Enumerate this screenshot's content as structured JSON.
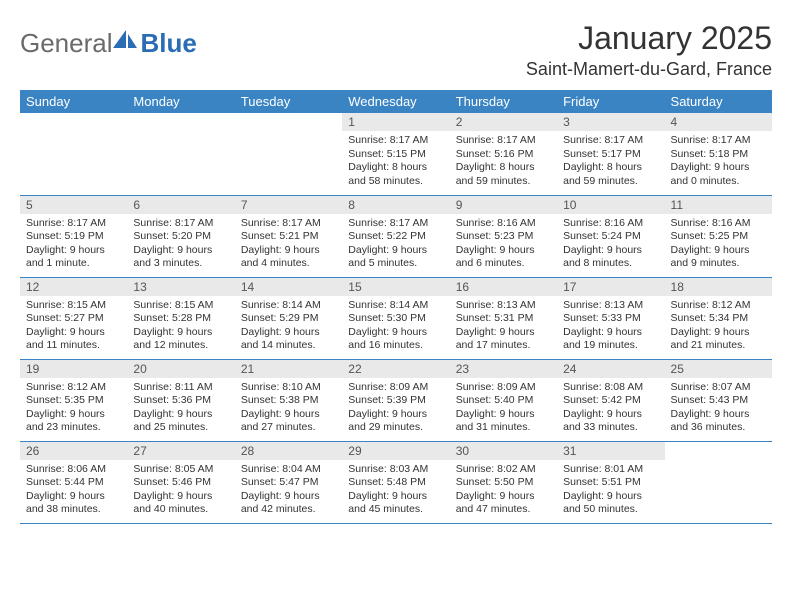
{
  "logo": {
    "text_general": "General",
    "text_blue": "Blue"
  },
  "title": "January 2025",
  "location": "Saint-Mamert-du-Gard, France",
  "colors": {
    "header_bg": "#3b84c4",
    "header_fg": "#ffffff",
    "daynum_bg": "#e9e9e9",
    "daynum_fg": "#555555",
    "border": "#3b84c4",
    "logo_gray": "#6a6a6a",
    "logo_blue": "#2a6db5"
  },
  "day_headers": [
    "Sunday",
    "Monday",
    "Tuesday",
    "Wednesday",
    "Thursday",
    "Friday",
    "Saturday"
  ],
  "weeks": [
    [
      null,
      null,
      null,
      {
        "n": "1",
        "sr": "Sunrise: 8:17 AM",
        "ss": "Sunset: 5:15 PM",
        "dl": "Daylight: 8 hours and 58 minutes."
      },
      {
        "n": "2",
        "sr": "Sunrise: 8:17 AM",
        "ss": "Sunset: 5:16 PM",
        "dl": "Daylight: 8 hours and 59 minutes."
      },
      {
        "n": "3",
        "sr": "Sunrise: 8:17 AM",
        "ss": "Sunset: 5:17 PM",
        "dl": "Daylight: 8 hours and 59 minutes."
      },
      {
        "n": "4",
        "sr": "Sunrise: 8:17 AM",
        "ss": "Sunset: 5:18 PM",
        "dl": "Daylight: 9 hours and 0 minutes."
      }
    ],
    [
      {
        "n": "5",
        "sr": "Sunrise: 8:17 AM",
        "ss": "Sunset: 5:19 PM",
        "dl": "Daylight: 9 hours and 1 minute."
      },
      {
        "n": "6",
        "sr": "Sunrise: 8:17 AM",
        "ss": "Sunset: 5:20 PM",
        "dl": "Daylight: 9 hours and 3 minutes."
      },
      {
        "n": "7",
        "sr": "Sunrise: 8:17 AM",
        "ss": "Sunset: 5:21 PM",
        "dl": "Daylight: 9 hours and 4 minutes."
      },
      {
        "n": "8",
        "sr": "Sunrise: 8:17 AM",
        "ss": "Sunset: 5:22 PM",
        "dl": "Daylight: 9 hours and 5 minutes."
      },
      {
        "n": "9",
        "sr": "Sunrise: 8:16 AM",
        "ss": "Sunset: 5:23 PM",
        "dl": "Daylight: 9 hours and 6 minutes."
      },
      {
        "n": "10",
        "sr": "Sunrise: 8:16 AM",
        "ss": "Sunset: 5:24 PM",
        "dl": "Daylight: 9 hours and 8 minutes."
      },
      {
        "n": "11",
        "sr": "Sunrise: 8:16 AM",
        "ss": "Sunset: 5:25 PM",
        "dl": "Daylight: 9 hours and 9 minutes."
      }
    ],
    [
      {
        "n": "12",
        "sr": "Sunrise: 8:15 AM",
        "ss": "Sunset: 5:27 PM",
        "dl": "Daylight: 9 hours and 11 minutes."
      },
      {
        "n": "13",
        "sr": "Sunrise: 8:15 AM",
        "ss": "Sunset: 5:28 PM",
        "dl": "Daylight: 9 hours and 12 minutes."
      },
      {
        "n": "14",
        "sr": "Sunrise: 8:14 AM",
        "ss": "Sunset: 5:29 PM",
        "dl": "Daylight: 9 hours and 14 minutes."
      },
      {
        "n": "15",
        "sr": "Sunrise: 8:14 AM",
        "ss": "Sunset: 5:30 PM",
        "dl": "Daylight: 9 hours and 16 minutes."
      },
      {
        "n": "16",
        "sr": "Sunrise: 8:13 AM",
        "ss": "Sunset: 5:31 PM",
        "dl": "Daylight: 9 hours and 17 minutes."
      },
      {
        "n": "17",
        "sr": "Sunrise: 8:13 AM",
        "ss": "Sunset: 5:33 PM",
        "dl": "Daylight: 9 hours and 19 minutes."
      },
      {
        "n": "18",
        "sr": "Sunrise: 8:12 AM",
        "ss": "Sunset: 5:34 PM",
        "dl": "Daylight: 9 hours and 21 minutes."
      }
    ],
    [
      {
        "n": "19",
        "sr": "Sunrise: 8:12 AM",
        "ss": "Sunset: 5:35 PM",
        "dl": "Daylight: 9 hours and 23 minutes."
      },
      {
        "n": "20",
        "sr": "Sunrise: 8:11 AM",
        "ss": "Sunset: 5:36 PM",
        "dl": "Daylight: 9 hours and 25 minutes."
      },
      {
        "n": "21",
        "sr": "Sunrise: 8:10 AM",
        "ss": "Sunset: 5:38 PM",
        "dl": "Daylight: 9 hours and 27 minutes."
      },
      {
        "n": "22",
        "sr": "Sunrise: 8:09 AM",
        "ss": "Sunset: 5:39 PM",
        "dl": "Daylight: 9 hours and 29 minutes."
      },
      {
        "n": "23",
        "sr": "Sunrise: 8:09 AM",
        "ss": "Sunset: 5:40 PM",
        "dl": "Daylight: 9 hours and 31 minutes."
      },
      {
        "n": "24",
        "sr": "Sunrise: 8:08 AM",
        "ss": "Sunset: 5:42 PM",
        "dl": "Daylight: 9 hours and 33 minutes."
      },
      {
        "n": "25",
        "sr": "Sunrise: 8:07 AM",
        "ss": "Sunset: 5:43 PM",
        "dl": "Daylight: 9 hours and 36 minutes."
      }
    ],
    [
      {
        "n": "26",
        "sr": "Sunrise: 8:06 AM",
        "ss": "Sunset: 5:44 PM",
        "dl": "Daylight: 9 hours and 38 minutes."
      },
      {
        "n": "27",
        "sr": "Sunrise: 8:05 AM",
        "ss": "Sunset: 5:46 PM",
        "dl": "Daylight: 9 hours and 40 minutes."
      },
      {
        "n": "28",
        "sr": "Sunrise: 8:04 AM",
        "ss": "Sunset: 5:47 PM",
        "dl": "Daylight: 9 hours and 42 minutes."
      },
      {
        "n": "29",
        "sr": "Sunrise: 8:03 AM",
        "ss": "Sunset: 5:48 PM",
        "dl": "Daylight: 9 hours and 45 minutes."
      },
      {
        "n": "30",
        "sr": "Sunrise: 8:02 AM",
        "ss": "Sunset: 5:50 PM",
        "dl": "Daylight: 9 hours and 47 minutes."
      },
      {
        "n": "31",
        "sr": "Sunrise: 8:01 AM",
        "ss": "Sunset: 5:51 PM",
        "dl": "Daylight: 9 hours and 50 minutes."
      },
      null
    ]
  ]
}
